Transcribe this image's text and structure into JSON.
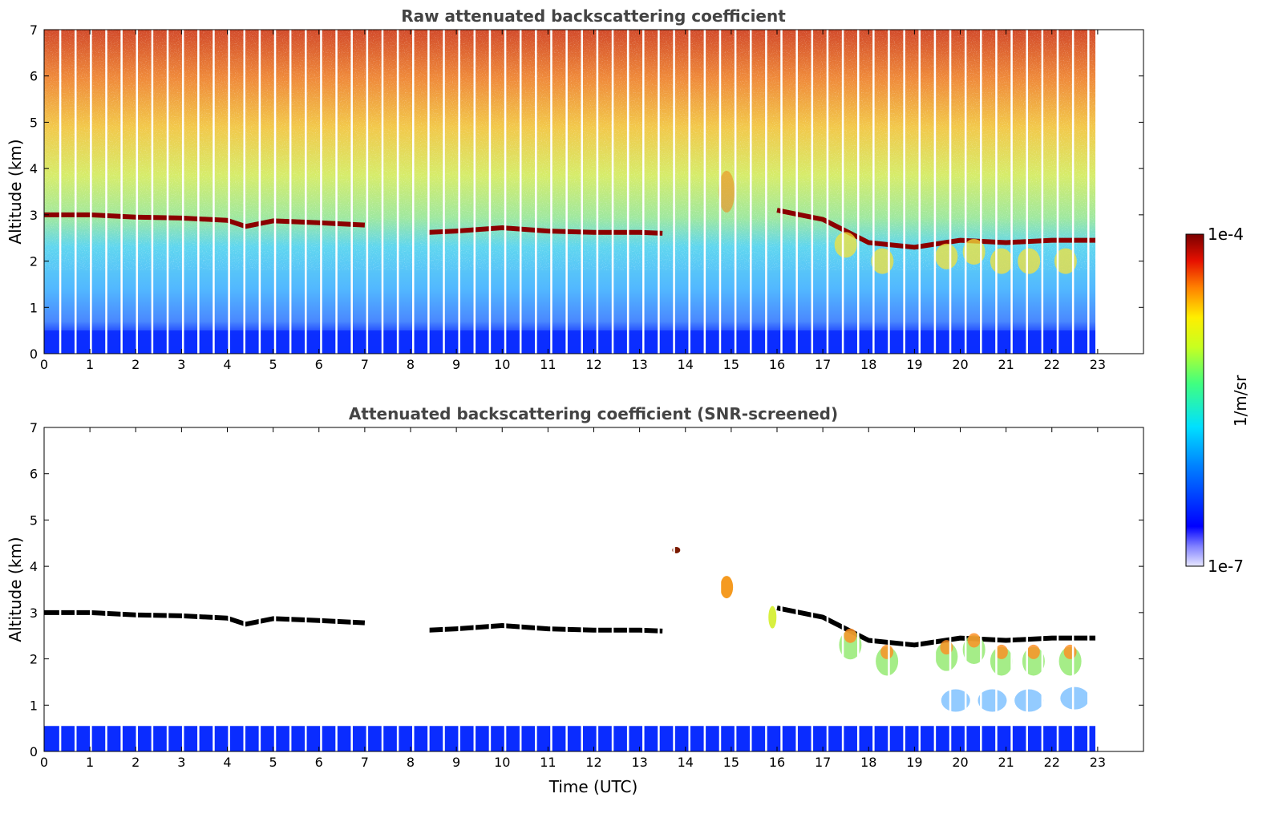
{
  "chart_data": [
    {
      "type": "heatmap",
      "title": "Raw attenuated backscattering coefficient",
      "xlabel": "",
      "ylabel": "Altitude (km)",
      "xlim": [
        0,
        24
      ],
      "ylim": [
        0,
        7
      ],
      "xticks": [
        "0",
        "1",
        "2",
        "3",
        "4",
        "5",
        "6",
        "7",
        "8",
        "9",
        "10",
        "11",
        "12",
        "13",
        "14",
        "15",
        "16",
        "17",
        "18",
        "19",
        "20",
        "21",
        "22",
        "23"
      ],
      "yticks": [
        "0",
        "1",
        "2",
        "3",
        "4",
        "5",
        "6",
        "7"
      ],
      "data_end_hour": 22.95,
      "cloud_base_km": [
        {
          "t": 0,
          "z": 3.0
        },
        {
          "t": 1,
          "z": 3.0
        },
        {
          "t": 2,
          "z": 2.95
        },
        {
          "t": 3,
          "z": 2.93
        },
        {
          "t": 4,
          "z": 2.88
        },
        {
          "t": 4.4,
          "z": 2.75
        },
        {
          "t": 5,
          "z": 2.87
        },
        {
          "t": 6,
          "z": 2.83
        },
        {
          "t": 7,
          "z": 2.78
        },
        {
          "t": 8.4,
          "z": 2.62
        },
        {
          "t": 9,
          "z": 2.65
        },
        {
          "t": 10,
          "z": 2.72
        },
        {
          "t": 11,
          "z": 2.65
        },
        {
          "t": 12,
          "z": 2.62
        },
        {
          "t": 13,
          "z": 2.62
        },
        {
          "t": 13.5,
          "z": 2.6
        },
        {
          "t": 16,
          "z": 3.1
        },
        {
          "t": 17,
          "z": 2.9
        },
        {
          "t": 18,
          "z": 2.4
        },
        {
          "t": 19,
          "z": 2.3
        },
        {
          "t": 20,
          "z": 2.45
        },
        {
          "t": 21,
          "z": 2.4
        },
        {
          "t": 22,
          "z": 2.45
        },
        {
          "t": 22.95,
          "z": 2.45
        }
      ],
      "boundary_layer_top_km": 0.5,
      "cloud_gap_hours": [
        7.0,
        8.3
      ]
    },
    {
      "type": "heatmap",
      "title": "Attenuated backscattering coefficient (SNR-screened)",
      "xlabel": "Time (UTC)",
      "ylabel": "Altitude (km)",
      "xlim": [
        0,
        24
      ],
      "ylim": [
        0,
        7
      ],
      "xticks": [
        "0",
        "1",
        "2",
        "3",
        "4",
        "5",
        "6",
        "7",
        "8",
        "9",
        "10",
        "11",
        "12",
        "13",
        "14",
        "15",
        "16",
        "17",
        "18",
        "19",
        "20",
        "21",
        "22",
        "23"
      ],
      "yticks": [
        "0",
        "1",
        "2",
        "3",
        "4",
        "5",
        "6",
        "7"
      ],
      "data_end_hour": 22.95
    }
  ],
  "colorbar": {
    "label": "1/m/sr",
    "max_label": "1e-4",
    "min_label": "1e-7",
    "scale": "log",
    "colormap": "jet",
    "range": [
      1e-07,
      0.0001
    ]
  },
  "colors": {
    "title": "#444444",
    "cloud_line_raw": "#8b0000",
    "cloud_line_screened": "#000000",
    "boundary_layer": "#0a2cff"
  }
}
